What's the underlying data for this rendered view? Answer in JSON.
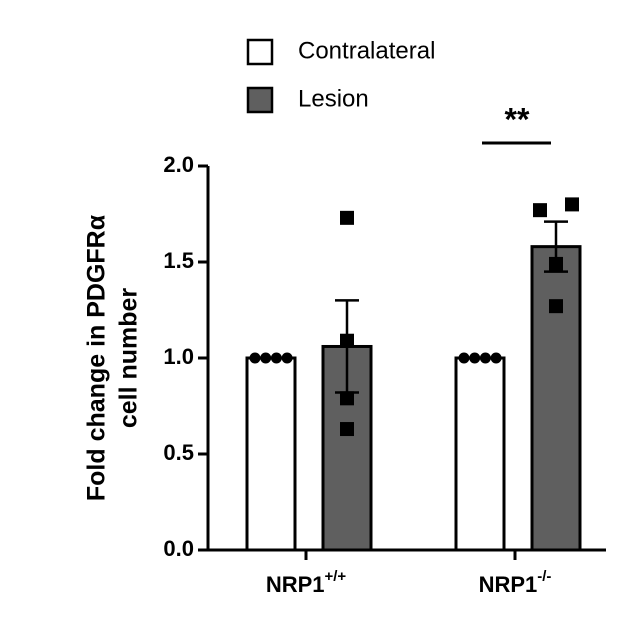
{
  "chart_data": {
    "type": "bar",
    "y_label_lines": [
      "Fold change in PDGFRα",
      "cell number"
    ],
    "categories": [
      "NRP1",
      "NRP1"
    ],
    "category_superscripts": [
      "+/+",
      "-/-"
    ],
    "series": [
      {
        "name": "Contralateral",
        "color": "#ffffff",
        "values": [
          1.0,
          1.0
        ],
        "errors": [
          0,
          0
        ],
        "points": [
          [
            1.0,
            1.0,
            1.0,
            1.0
          ],
          [
            1.0,
            1.0,
            1.0,
            1.0
          ]
        ]
      },
      {
        "name": "Lesion",
        "color": "#5f5f5f",
        "values": [
          1.06,
          1.58
        ],
        "errors": [
          0.24,
          0.13
        ],
        "points": [
          [
            1.73,
            1.09,
            0.79,
            0.63
          ],
          [
            1.77,
            1.8,
            1.49,
            1.27
          ]
        ]
      }
    ],
    "annotation": "**",
    "ylim": [
      0,
      2
    ],
    "yticks": [
      {
        "value": 0,
        "label": "0.0"
      },
      {
        "value": 0.5,
        "label": "0.5"
      },
      {
        "value": 1,
        "label": "1.0"
      },
      {
        "value": 1.5,
        "label": "1.5"
      },
      {
        "value": 2,
        "label": "2.0"
      }
    ]
  }
}
